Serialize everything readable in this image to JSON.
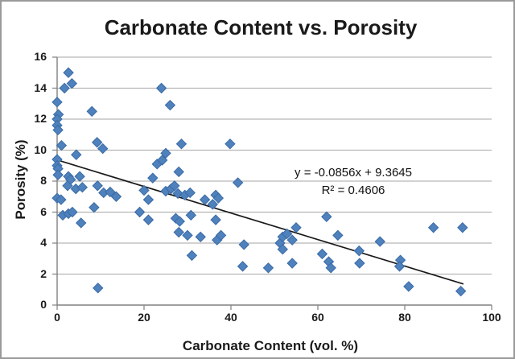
{
  "chart_data": {
    "type": "scatter",
    "title": "Carbonate Content vs. Porosity",
    "xlabel": "Carbonate Content (vol. %)",
    "ylabel": "Porosity (%)",
    "xlim": [
      0,
      100
    ],
    "ylim": [
      0,
      16
    ],
    "xticks": [
      0,
      20,
      40,
      60,
      80,
      100
    ],
    "yticks": [
      0,
      2,
      4,
      6,
      8,
      10,
      12,
      14,
      16
    ],
    "grid": "horizontal-gridlines",
    "legend": "none",
    "marker": "diamond",
    "colors": {
      "marker_fill": "#4F81BD",
      "marker_edge": "#3A6BA5",
      "gridline": "#A6A6A6",
      "axis": "#808080",
      "trendline": "#1A1A1A",
      "text": "#1A1A1A",
      "frame_border": "#9A9A9A",
      "background": "#FFFFFF"
    },
    "points": [
      [
        2.6,
        15.0
      ],
      [
        1.7,
        14.0
      ],
      [
        3.4,
        14.3
      ],
      [
        0,
        13.1
      ],
      [
        0.3,
        12.3
      ],
      [
        0,
        12.0
      ],
      [
        0,
        11.6
      ],
      [
        0.2,
        11.3
      ],
      [
        8,
        12.5
      ],
      [
        1,
        10.3
      ],
      [
        4.4,
        9.7
      ],
      [
        9.2,
        10.5
      ],
      [
        10.5,
        10.1
      ],
      [
        0,
        9.4
      ],
      [
        0,
        9.0
      ],
      [
        0.2,
        8.8
      ],
      [
        0.2,
        8.4
      ],
      [
        2.6,
        8.3
      ],
      [
        3.1,
        8.1
      ],
      [
        5.2,
        8.3
      ],
      [
        2.4,
        7.7
      ],
      [
        4.3,
        7.5
      ],
      [
        5.8,
        7.6
      ],
      [
        9.3,
        7.7
      ],
      [
        10.7,
        7.25
      ],
      [
        12.2,
        7.3
      ],
      [
        13.6,
        7.0
      ],
      [
        0,
        6.9
      ],
      [
        0.9,
        6.8
      ],
      [
        1.3,
        5.8
      ],
      [
        2.6,
        5.9
      ],
      [
        3.5,
        6.0
      ],
      [
        5.5,
        5.3
      ],
      [
        8.5,
        6.3
      ],
      [
        9.4,
        1.1
      ],
      [
        19,
        6.0
      ],
      [
        20,
        7.4
      ],
      [
        21,
        6.8
      ],
      [
        21,
        5.5
      ],
      [
        22,
        8.2
      ],
      [
        23,
        9.1
      ],
      [
        24.2,
        9.35
      ],
      [
        25,
        9.8
      ],
      [
        24,
        14.0
      ],
      [
        26,
        12.9
      ],
      [
        28.6,
        10.4
      ],
      [
        28,
        8.6
      ],
      [
        25,
        7.35
      ],
      [
        26.2,
        7.5
      ],
      [
        27,
        7.7
      ],
      [
        27.8,
        7.2
      ],
      [
        29.4,
        7.1
      ],
      [
        30.6,
        7.25
      ],
      [
        27.3,
        5.6
      ],
      [
        28.2,
        5.4
      ],
      [
        30.8,
        5.8
      ],
      [
        28,
        4.7
      ],
      [
        30,
        4.5
      ],
      [
        31,
        3.2
      ],
      [
        33,
        4.4
      ],
      [
        34,
        6.8
      ],
      [
        35.8,
        6.5
      ],
      [
        36.5,
        7.1
      ],
      [
        37.1,
        6.9
      ],
      [
        36.5,
        5.5
      ],
      [
        36.8,
        4.2
      ],
      [
        37.7,
        4.5
      ],
      [
        39.8,
        10.4
      ],
      [
        41.6,
        7.9
      ],
      [
        43,
        3.9
      ],
      [
        42.7,
        2.5
      ],
      [
        48.6,
        2.4
      ],
      [
        51.3,
        4.0
      ],
      [
        51.9,
        4.4
      ],
      [
        52.9,
        4.6
      ],
      [
        54.1,
        4.2
      ],
      [
        51.9,
        3.6
      ],
      [
        54.1,
        2.7
      ],
      [
        55,
        5.0
      ],
      [
        61,
        3.3
      ],
      [
        62,
        5.7
      ],
      [
        62.5,
        2.8
      ],
      [
        63,
        2.4
      ],
      [
        64.6,
        4.5
      ],
      [
        69.5,
        3.5
      ],
      [
        69.6,
        2.7
      ],
      [
        74.3,
        4.1
      ],
      [
        79,
        2.9
      ],
      [
        78.8,
        2.5
      ],
      [
        80.9,
        1.2
      ],
      [
        86.6,
        5.0
      ],
      [
        93.3,
        5.0
      ],
      [
        92.9,
        0.9
      ]
    ],
    "trendline": {
      "slope": -0.0856,
      "intercept": 9.3645,
      "x_start": 0,
      "x_end": 93.5
    },
    "annotation": {
      "line1": "y = -0.0856x + 9.3645",
      "line2": "R² = 0.4606"
    }
  }
}
